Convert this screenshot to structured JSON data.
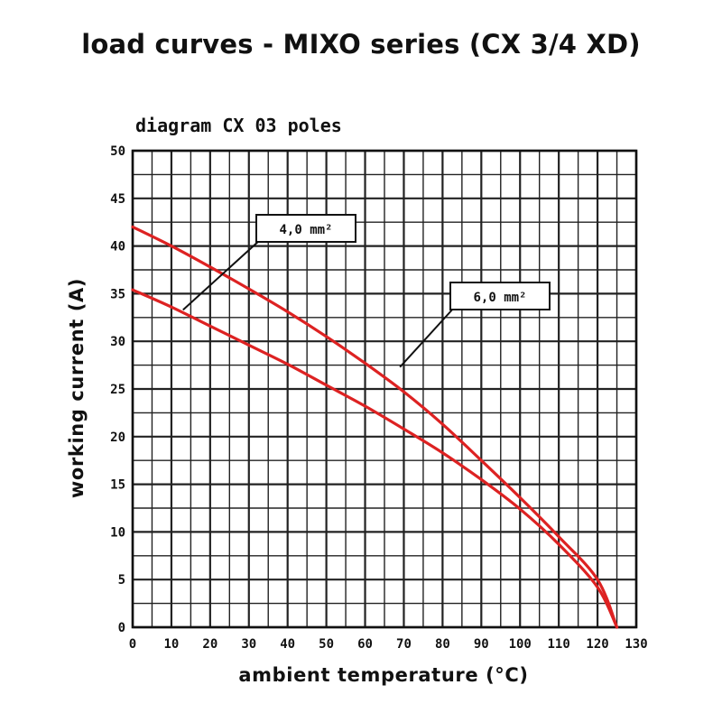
{
  "title": "load curves - MIXO series (CX 3/4 XD)",
  "chart_data": {
    "type": "line",
    "subtitle": "diagram CX 03 poles",
    "xlabel": "ambient temperature (°C)",
    "ylabel": "working current (A)",
    "xlim": [
      0,
      130
    ],
    "ylim": [
      0,
      50
    ],
    "xticks": [
      "0",
      "10",
      "20",
      "30",
      "40",
      "50",
      "60",
      "70",
      "80",
      "90",
      "100",
      "110",
      "120",
      "130"
    ],
    "yticks": [
      "0",
      "5",
      "10",
      "15",
      "20",
      "25",
      "30",
      "35",
      "40",
      "45",
      "50"
    ],
    "grid": true,
    "series": [
      {
        "name": "4,0 mm²",
        "color": "#dd2222",
        "points": [
          [
            0,
            35.4
          ],
          [
            10,
            33.6
          ],
          [
            20,
            31.6
          ],
          [
            30,
            29.6
          ],
          [
            40,
            27.6
          ],
          [
            50,
            25.4
          ],
          [
            60,
            23.2
          ],
          [
            70,
            20.8
          ],
          [
            80,
            18.3
          ],
          [
            90,
            15.5
          ],
          [
            100,
            12.4
          ],
          [
            110,
            8.7
          ],
          [
            120,
            4.2
          ],
          [
            125,
            0
          ]
        ]
      },
      {
        "name": "6,0 mm²",
        "color": "#dd2222",
        "points": [
          [
            0,
            42.0
          ],
          [
            10,
            40.0
          ],
          [
            20,
            37.8
          ],
          [
            30,
            35.5
          ],
          [
            40,
            33.1
          ],
          [
            50,
            30.5
          ],
          [
            60,
            27.7
          ],
          [
            70,
            24.7
          ],
          [
            80,
            21.3
          ],
          [
            90,
            17.5
          ],
          [
            100,
            13.6
          ],
          [
            110,
            9.5
          ],
          [
            120,
            5.0
          ],
          [
            125,
            0
          ]
        ]
      }
    ],
    "callouts": [
      {
        "series": 0,
        "label": "4,0 mm²",
        "anchor": [
          13,
          33.3
        ]
      },
      {
        "series": 1,
        "label": "6,0 mm²",
        "anchor": [
          69,
          27.3
        ]
      }
    ]
  }
}
